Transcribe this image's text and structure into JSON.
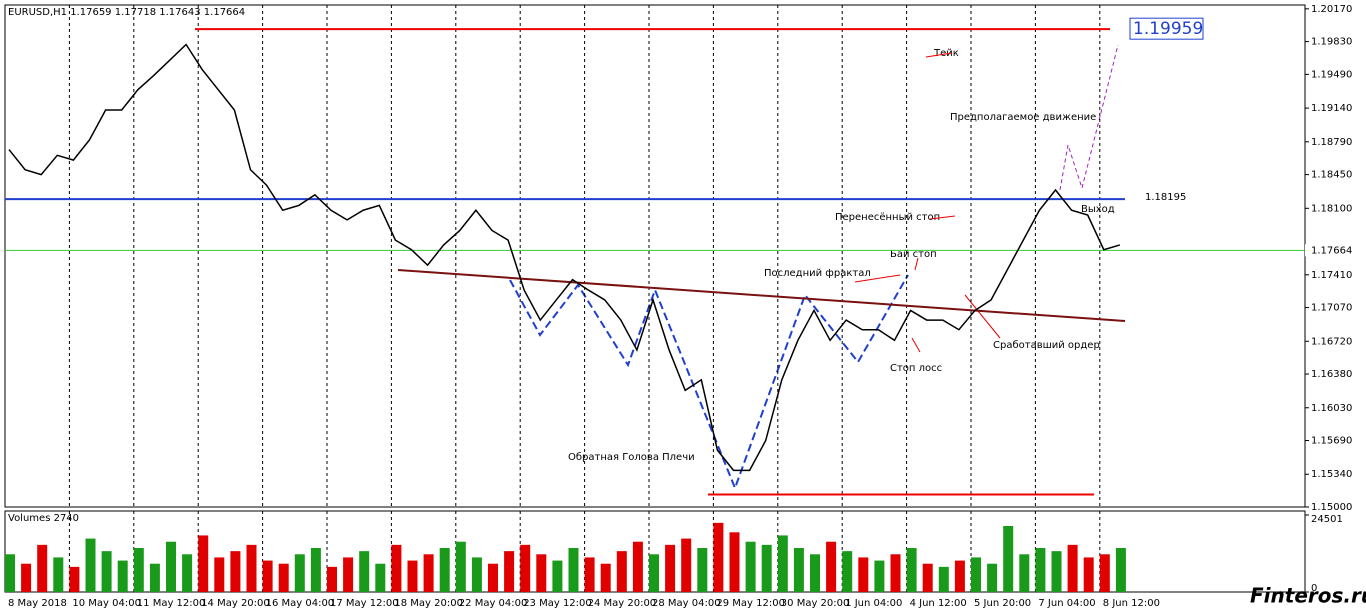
{
  "chart_data": {
    "type": "line",
    "header": "EURUSD,H1  1.17659 1.17718 1.17643 1.17664",
    "volume_title": "Volumes 2740",
    "watermark": "Finteros.ru",
    "x_labels": [
      "8 May 2018",
      "10 May 04:00",
      "11 May 12:00",
      "14 May 20:00",
      "16 May 04:00",
      "17 May 12:00",
      "18 May 20:00",
      "22 May 04:00",
      "23 May 12:00",
      "24 May 20:00",
      "28 May 04:00",
      "29 May 12:00",
      "30 May 20:00",
      "1 Jun 04:00",
      "4 Jun 12:00",
      "5 Jun 20:00",
      "7 Jun 04:00",
      "8 Jun 12:00"
    ],
    "ylim": [
      1.15,
      1.2021
    ],
    "yticks": [
      {
        "value": 1.2017,
        "label": "1.20170"
      },
      {
        "value": 1.1983,
        "label": "1.19830"
      },
      {
        "value": 1.1949,
        "label": "1.19490"
      },
      {
        "value": 1.1914,
        "label": "1.19140"
      },
      {
        "value": 1.1879,
        "label": "1.18790"
      },
      {
        "value": 1.1845,
        "label": "1.18450"
      },
      {
        "value": 1.181,
        "label": "1.18100"
      },
      {
        "value": 1.1741,
        "label": "1.17410"
      },
      {
        "value": 1.1707,
        "label": "1.17070"
      },
      {
        "value": 1.1672,
        "label": "1.16720"
      },
      {
        "value": 1.1638,
        "label": "1.16380"
      },
      {
        "value": 1.1603,
        "label": "1.16030"
      },
      {
        "value": 1.1569,
        "label": "1.15690"
      },
      {
        "value": 1.1534,
        "label": "1.15340"
      },
      {
        "value": 1.15,
        "label": "1.15000"
      }
    ],
    "current_price": {
      "value": 1.17664,
      "label": "1.17664"
    },
    "take_level": {
      "value": 1.19959,
      "label": "1.19959"
    },
    "entry_level": {
      "value": 1.18195,
      "label": "1.18195"
    },
    "low_level": 1.1513,
    "trendline": [
      1.1746,
      1.1693
    ],
    "series": [
      {
        "name": "EURUSD",
        "color": "#000000",
        "values": [
          1.1871,
          1.185,
          1.1845,
          1.1865,
          1.186,
          1.1881,
          1.1912,
          1.1912,
          1.1933,
          1.1948,
          1.1964,
          1.198,
          1.1954,
          1.1933,
          1.1912,
          1.185,
          1.1834,
          1.1808,
          1.1813,
          1.1824,
          1.1808,
          1.1798,
          1.1808,
          1.1813,
          1.1777,
          1.1767,
          1.1751,
          1.1772,
          1.1787,
          1.1808,
          1.1787,
          1.1777,
          1.1725,
          1.1694,
          1.1715,
          1.1736,
          1.1725,
          1.1715,
          1.1694,
          1.1663,
          1.1715,
          1.1663,
          1.1621,
          1.1632,
          1.1559,
          1.1538,
          1.1538,
          1.1569,
          1.1632,
          1.1673,
          1.1704,
          1.1673,
          1.1694,
          1.1684,
          1.1684,
          1.1673,
          1.1704,
          1.1694,
          1.1694,
          1.1684,
          1.1704,
          1.1715,
          1.1746,
          1.1777,
          1.1808,
          1.1829,
          1.1808,
          1.1803,
          1.1767,
          1.1772
        ]
      }
    ],
    "volume": {
      "ylim": [
        0,
        24501
      ],
      "yticks": [
        24501,
        0
      ],
      "values": [
        12000,
        9000,
        15000,
        11000,
        8000,
        17000,
        13000,
        10000,
        14000,
        9000,
        16000,
        12000,
        18000,
        11000,
        13000,
        15000,
        10000,
        9000,
        12000,
        14000,
        8000,
        11000,
        13000,
        9000,
        15000,
        10000,
        12000,
        14000,
        16000,
        11000,
        9000,
        13000,
        15000,
        12000,
        10000,
        14000,
        11000,
        9000,
        13000,
        16000,
        12000,
        15000,
        17000,
        14000,
        22000,
        19000,
        16000,
        15000,
        18000,
        14000,
        12000,
        16000,
        13000,
        11000,
        10000,
        12000,
        14000,
        9000,
        8000,
        10000,
        11000,
        9000,
        21000,
        12000,
        14000,
        13000,
        15000,
        11000,
        12000,
        14000
      ]
    },
    "annotations": [
      "Тейк",
      "Предполагаемое движение",
      "Выход",
      "Перенесённый стоп",
      "Бай стоп",
      "Последний фрактал",
      "Сработавший ордер",
      "Стоп лосс",
      "Обратная Голова Плечи"
    ]
  }
}
